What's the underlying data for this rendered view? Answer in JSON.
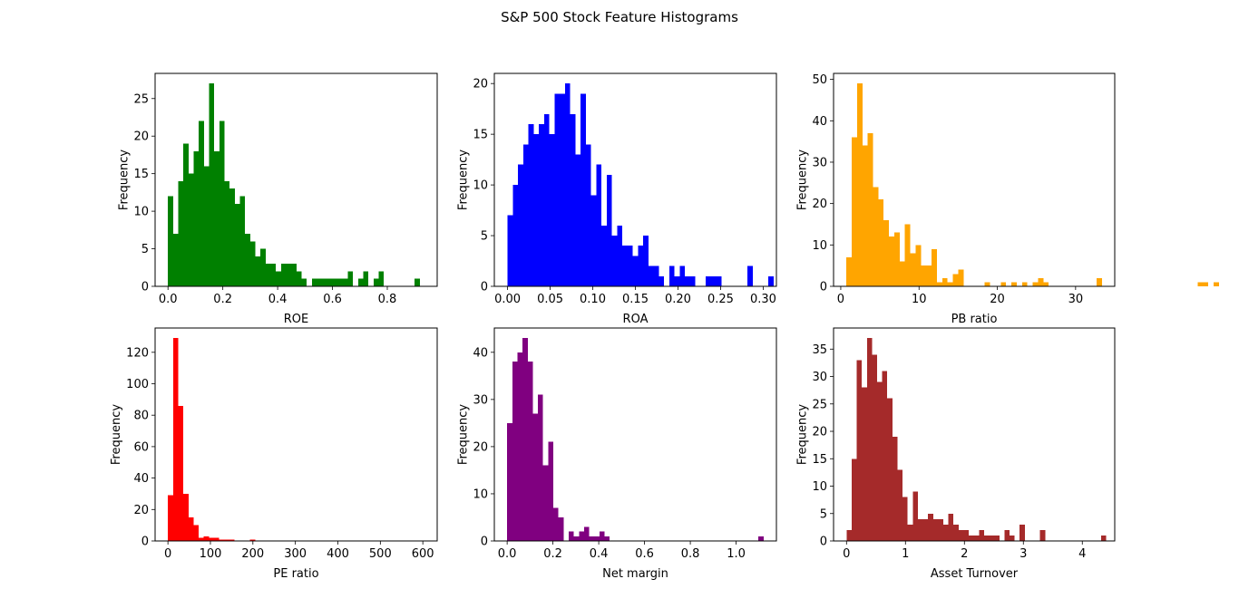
{
  "title": "S&P 500 Stock Feature Histograms",
  "chart_data": [
    {
      "type": "bar",
      "xlabel": "ROE",
      "ylabel": "Frequency",
      "color": "#008000",
      "xlim": [
        -0.047,
        0.982
      ],
      "ylim": [
        0,
        28.35
      ],
      "xticks": [
        0.0,
        0.2,
        0.4,
        0.6,
        0.8
      ],
      "xticklabels": [
        "0.0",
        "0.2",
        "0.4",
        "0.6",
        "0.8"
      ],
      "yticks": [
        0,
        5,
        10,
        15,
        20,
        25
      ],
      "yticklabels": [
        "0",
        "5",
        "10",
        "15",
        "20",
        "25"
      ],
      "grid": false,
      "bin_start": 0.0,
      "bin_width": 0.01875,
      "values": [
        12,
        7,
        14,
        19,
        15,
        18,
        22,
        16,
        27,
        18,
        22,
        14,
        13,
        11,
        12,
        7,
        6,
        4,
        5,
        3,
        3,
        2,
        3,
        3,
        3,
        2,
        1,
        0,
        1,
        1,
        1,
        1,
        1,
        1,
        1,
        2,
        0,
        1,
        2,
        0,
        1,
        2,
        0,
        0,
        0,
        0,
        0,
        0,
        1
      ]
    },
    {
      "type": "bar",
      "xlabel": "ROA",
      "ylabel": "Frequency",
      "color": "#0000ff",
      "xlim": [
        -0.0155,
        0.3155
      ],
      "ylim": [
        0,
        21.0
      ],
      "xticks": [
        0.0,
        0.05,
        0.1,
        0.15,
        0.2,
        0.25,
        0.3
      ],
      "xticklabels": [
        "0.00",
        "0.05",
        "0.10",
        "0.15",
        "0.20",
        "0.25",
        "0.30"
      ],
      "yticks": [
        0,
        5,
        10,
        15,
        20
      ],
      "yticklabels": [
        "0",
        "5",
        "10",
        "15",
        "20"
      ],
      "grid": false,
      "bin_start": 0.0,
      "bin_width": 0.00612,
      "values": [
        7,
        10,
        12,
        14,
        16,
        15,
        16,
        17,
        15,
        19,
        19,
        20,
        17,
        13,
        19,
        14,
        9,
        12,
        6,
        11,
        5,
        6,
        4,
        4,
        3,
        4,
        5,
        2,
        2,
        1,
        0,
        2,
        1,
        2,
        1,
        1,
        0,
        0,
        1,
        1,
        1,
        0,
        0,
        0,
        0,
        0,
        2,
        0,
        0,
        0,
        1
      ]
    },
    {
      "type": "bar",
      "xlabel": "PB ratio",
      "ylabel": "Frequency",
      "color": "#ffa500",
      "xlim": [
        -0.92,
        35.0
      ],
      "ylim": [
        0,
        51.45
      ],
      "xticks": [
        0,
        10,
        20,
        30
      ],
      "xticklabels": [
        "0",
        "10",
        "20",
        "30"
      ],
      "yticks": [
        0,
        10,
        20,
        30,
        40,
        50
      ],
      "yticklabels": [
        "0",
        "10",
        "20",
        "30",
        "40",
        "50"
      ],
      "grid": false,
      "bin_start": 0.72,
      "bin_width": 0.68,
      "values": [
        7,
        36,
        49,
        34,
        37,
        24,
        21,
        16,
        12,
        13,
        6,
        15,
        8,
        10,
        5,
        5,
        9,
        1,
        2,
        1,
        3,
        4,
        0,
        0,
        0,
        0,
        1,
        0,
        0,
        1,
        0,
        1,
        0,
        1,
        0,
        1,
        2,
        1,
        0,
        0,
        0,
        0,
        0,
        0,
        0,
        0,
        0,
        2,
        0,
        0,
        0,
        0,
        0,
        0,
        0,
        0,
        0,
        0,
        0,
        0,
        0,
        0,
        0,
        0,
        0,
        0,
        1,
        1,
        0,
        1
      ]
    },
    {
      "type": "bar",
      "xlabel": "PE ratio",
      "ylabel": "Frequency",
      "color": "#ff0000",
      "xlim": [
        -30.2,
        633.8
      ],
      "ylim": [
        0,
        135.45
      ],
      "xticks": [
        0,
        100,
        200,
        300,
        400,
        500,
        600
      ],
      "xticklabels": [
        "0",
        "100",
        "200",
        "300",
        "400",
        "500",
        "600"
      ],
      "yticks": [
        0,
        20,
        40,
        60,
        80,
        100,
        120
      ],
      "yticklabels": [
        "0",
        "20",
        "40",
        "60",
        "80",
        "100",
        "120"
      ],
      "grid": false,
      "bin_start": 0.0,
      "bin_width": 12.07,
      "values": [
        29,
        129,
        86,
        30,
        15,
        10,
        2,
        3,
        2,
        2,
        1,
        1,
        1,
        0,
        0,
        0,
        1,
        0,
        0,
        0,
        0,
        0,
        0,
        0,
        0,
        0,
        0,
        0,
        0,
        0,
        0,
        0,
        0,
        0,
        0,
        0,
        0,
        0,
        0,
        0,
        0,
        0,
        0,
        0,
        0,
        0,
        0,
        0,
        0,
        0
      ]
    },
    {
      "type": "bar",
      "xlabel": "Net margin",
      "ylabel": "Frequency",
      "color": "#800080",
      "xlim": [
        -0.056,
        1.176
      ],
      "ylim": [
        0,
        45.15
      ],
      "xticks": [
        0.0,
        0.2,
        0.4,
        0.6,
        0.8,
        1.0
      ],
      "xticklabels": [
        "0.0",
        "0.2",
        "0.4",
        "0.6",
        "0.8",
        "1.0"
      ],
      "yticks": [
        0,
        10,
        20,
        30,
        40
      ],
      "yticklabels": [
        "0",
        "10",
        "20",
        "30",
        "40"
      ],
      "grid": false,
      "bin_start": 0.0,
      "bin_width": 0.0224,
      "values": [
        25,
        38,
        40,
        43,
        38,
        27,
        31,
        16,
        21,
        7,
        5,
        0,
        2,
        1,
        2,
        3,
        1,
        1,
        2,
        1,
        0,
        0,
        0,
        0,
        0,
        0,
        0,
        0,
        0,
        0,
        0,
        0,
        0,
        0,
        0,
        0,
        0,
        0,
        0,
        0,
        0,
        0,
        0,
        0,
        0,
        0,
        0,
        0,
        0,
        1
      ]
    },
    {
      "type": "bar",
      "xlabel": "Asset Turnover",
      "ylabel": "Frequency",
      "color": "#a52a2a",
      "xlim": [
        -0.22,
        4.55
      ],
      "ylim": [
        0,
        38.85
      ],
      "xticks": [
        0,
        1,
        2,
        3,
        4
      ],
      "xticklabels": [
        "0",
        "1",
        "2",
        "3",
        "4"
      ],
      "yticks": [
        0,
        5,
        10,
        15,
        20,
        25,
        30,
        35
      ],
      "yticklabels": [
        "0",
        "5",
        "10",
        "15",
        "20",
        "25",
        "30",
        "35"
      ],
      "grid": false,
      "bin_start": 0.0,
      "bin_width": 0.0864,
      "values": [
        2,
        15,
        33,
        28,
        37,
        34,
        29,
        31,
        26,
        19,
        13,
        8,
        3,
        9,
        4,
        4,
        5,
        4,
        4,
        3,
        5,
        3,
        2,
        2,
        1,
        1,
        2,
        1,
        1,
        1,
        0,
        2,
        1,
        0,
        3,
        0,
        0,
        0,
        2,
        0,
        0,
        0,
        0,
        0,
        0,
        0,
        0,
        0,
        0,
        0,
        1
      ]
    }
  ]
}
